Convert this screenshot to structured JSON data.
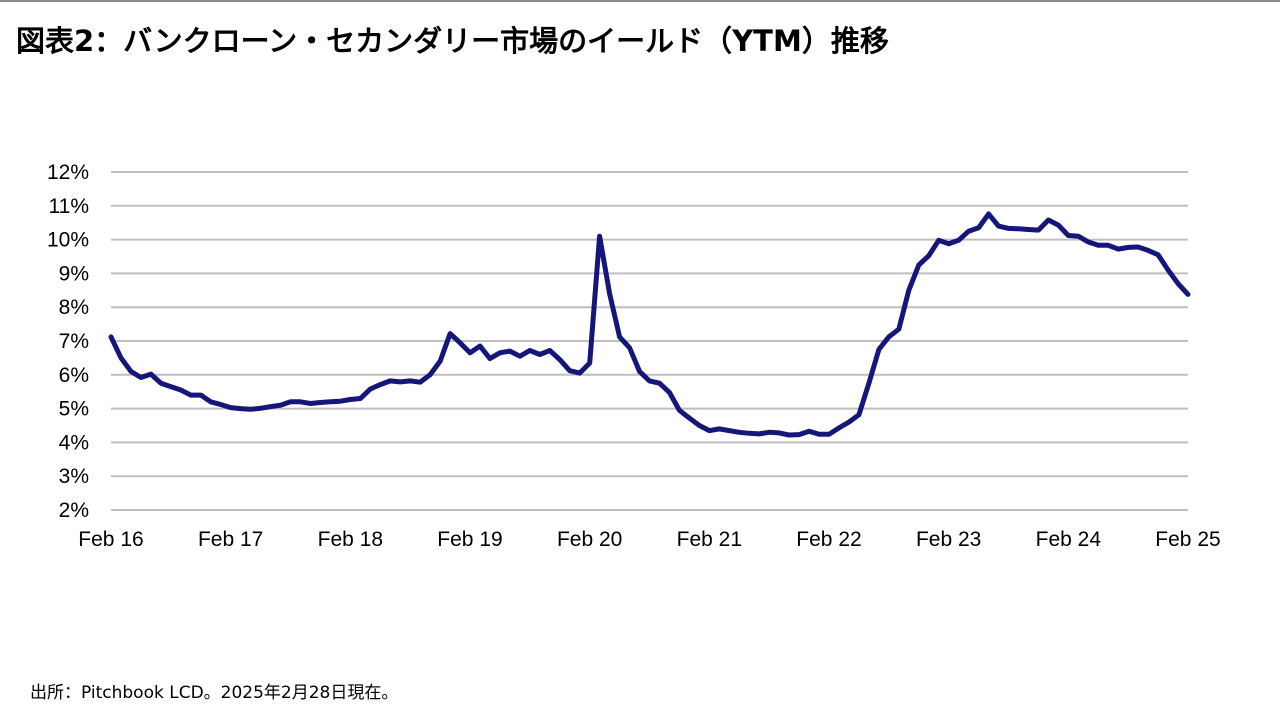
{
  "title": "図表2：バンクローン・セカンダリー市場のイールド（YTM）推移",
  "source": "出所：Pitchbook LCD。2025年2月28日現在。",
  "colors": {
    "line": "#141679",
    "grid": "#bfbfbf",
    "text": "#000000"
  },
  "chart_data": {
    "type": "line",
    "title": "",
    "xlabel": "",
    "ylabel": "",
    "grid": true,
    "ylim": [
      0.02,
      0.12
    ],
    "xlim": [
      "2016-02",
      "2025-02"
    ],
    "y_ticks": [
      {
        "value": 0.02,
        "label": "2%"
      },
      {
        "value": 0.03,
        "label": "3%"
      },
      {
        "value": 0.04,
        "label": "4%"
      },
      {
        "value": 0.05,
        "label": "5%"
      },
      {
        "value": 0.06,
        "label": "6%"
      },
      {
        "value": 0.07,
        "label": "7%"
      },
      {
        "value": 0.08,
        "label": "8%"
      },
      {
        "value": 0.09,
        "label": "9%"
      },
      {
        "value": 0.1,
        "label": "10%"
      },
      {
        "value": 0.11,
        "label": "11%"
      },
      {
        "value": 0.12,
        "label": "12%"
      }
    ],
    "x_ticks": [
      {
        "value": "2016-02",
        "label": "Feb 16"
      },
      {
        "value": "2017-02",
        "label": "Feb 17"
      },
      {
        "value": "2018-02",
        "label": "Feb 18"
      },
      {
        "value": "2019-02",
        "label": "Feb 19"
      },
      {
        "value": "2020-02",
        "label": "Feb 20"
      },
      {
        "value": "2021-02",
        "label": "Feb 21"
      },
      {
        "value": "2022-02",
        "label": "Feb 22"
      },
      {
        "value": "2023-02",
        "label": "Feb 23"
      },
      {
        "value": "2024-02",
        "label": "Feb 24"
      },
      {
        "value": "2025-02",
        "label": "Feb 25"
      }
    ],
    "series": [
      {
        "name": "",
        "points": [
          [
            "2016-02",
            0.0712
          ],
          [
            "2016-03",
            0.065
          ],
          [
            "2016-04",
            0.061
          ],
          [
            "2016-05",
            0.0592
          ],
          [
            "2016-06",
            0.0602
          ],
          [
            "2016-07",
            0.0575
          ],
          [
            "2016-08",
            0.0565
          ],
          [
            "2016-09",
            0.0555
          ],
          [
            "2016-10",
            0.054
          ],
          [
            "2016-11",
            0.054
          ],
          [
            "2016-12",
            0.052
          ],
          [
            "2017-01",
            0.0512
          ],
          [
            "2017-02",
            0.0503
          ],
          [
            "2017-03",
            0.05
          ],
          [
            "2017-04",
            0.0498
          ],
          [
            "2017-05",
            0.0501
          ],
          [
            "2017-06",
            0.0506
          ],
          [
            "2017-07",
            0.051
          ],
          [
            "2017-08",
            0.052
          ],
          [
            "2017-09",
            0.052
          ],
          [
            "2017-10",
            0.0515
          ],
          [
            "2017-11",
            0.0518
          ],
          [
            "2017-12",
            0.052
          ],
          [
            "2018-01",
            0.0522
          ],
          [
            "2018-02",
            0.0527
          ],
          [
            "2018-03",
            0.053
          ],
          [
            "2018-04",
            0.0558
          ],
          [
            "2018-05",
            0.0571
          ],
          [
            "2018-06",
            0.0582
          ],
          [
            "2018-07",
            0.0579
          ],
          [
            "2018-08",
            0.0582
          ],
          [
            "2018-09",
            0.0578
          ],
          [
            "2018-10",
            0.06
          ],
          [
            "2018-11",
            0.064
          ],
          [
            "2018-12",
            0.0722
          ],
          [
            "2019-01",
            0.0695
          ],
          [
            "2019-02",
            0.0665
          ],
          [
            "2019-03",
            0.0685
          ],
          [
            "2019-04",
            0.0648
          ],
          [
            "2019-05",
            0.0665
          ],
          [
            "2019-06",
            0.067
          ],
          [
            "2019-07",
            0.0655
          ],
          [
            "2019-08",
            0.0672
          ],
          [
            "2019-09",
            0.066
          ],
          [
            "2019-10",
            0.0672
          ],
          [
            "2019-11",
            0.0645
          ],
          [
            "2019-12",
            0.0612
          ],
          [
            "2020-01",
            0.0605
          ],
          [
            "2020-02",
            0.0635
          ],
          [
            "2020-03",
            0.101
          ],
          [
            "2020-04",
            0.084
          ],
          [
            "2020-05",
            0.0712
          ],
          [
            "2020-06",
            0.068
          ],
          [
            "2020-07",
            0.061
          ],
          [
            "2020-08",
            0.0582
          ],
          [
            "2020-09",
            0.0575
          ],
          [
            "2020-10",
            0.0548
          ],
          [
            "2020-11",
            0.0495
          ],
          [
            "2020-12",
            0.0472
          ],
          [
            "2021-01",
            0.045
          ],
          [
            "2021-02",
            0.0435
          ],
          [
            "2021-03",
            0.044
          ],
          [
            "2021-04",
            0.0435
          ],
          [
            "2021-05",
            0.043
          ],
          [
            "2021-06",
            0.0427
          ],
          [
            "2021-07",
            0.0425
          ],
          [
            "2021-08",
            0.043
          ],
          [
            "2021-09",
            0.0428
          ],
          [
            "2021-10",
            0.0422
          ],
          [
            "2021-11",
            0.0423
          ],
          [
            "2021-12",
            0.0433
          ],
          [
            "2022-01",
            0.0424
          ],
          [
            "2022-02",
            0.0424
          ],
          [
            "2022-03",
            0.0443
          ],
          [
            "2022-04",
            0.046
          ],
          [
            "2022-05",
            0.0482
          ],
          [
            "2022-06",
            0.0575
          ],
          [
            "2022-07",
            0.0675
          ],
          [
            "2022-08",
            0.0712
          ],
          [
            "2022-09",
            0.0735
          ],
          [
            "2022-10",
            0.085
          ],
          [
            "2022-11",
            0.0925
          ],
          [
            "2022-12",
            0.0952
          ],
          [
            "2023-01",
            0.0998
          ],
          [
            "2023-02",
            0.0988
          ],
          [
            "2023-03",
            0.0998
          ],
          [
            "2023-04",
            0.1025
          ],
          [
            "2023-05",
            0.1035
          ],
          [
            "2023-06",
            0.1076
          ],
          [
            "2023-07",
            0.104
          ],
          [
            "2023-08",
            0.1033
          ],
          [
            "2023-09",
            0.1032
          ],
          [
            "2023-10",
            0.103
          ],
          [
            "2023-11",
            0.1028
          ],
          [
            "2023-12",
            0.1058
          ],
          [
            "2024-01",
            0.1043
          ],
          [
            "2024-02",
            0.1012
          ],
          [
            "2024-03",
            0.101
          ],
          [
            "2024-04",
            0.0993
          ],
          [
            "2024-05",
            0.0983
          ],
          [
            "2024-06",
            0.0983
          ],
          [
            "2024-07",
            0.0972
          ],
          [
            "2024-08",
            0.0977
          ],
          [
            "2024-09",
            0.0978
          ],
          [
            "2024-10",
            0.0968
          ],
          [
            "2024-11",
            0.0955
          ],
          [
            "2024-12",
            0.091
          ],
          [
            "2025-01",
            0.087
          ],
          [
            "2025-02",
            0.0838
          ]
        ]
      }
    ]
  }
}
